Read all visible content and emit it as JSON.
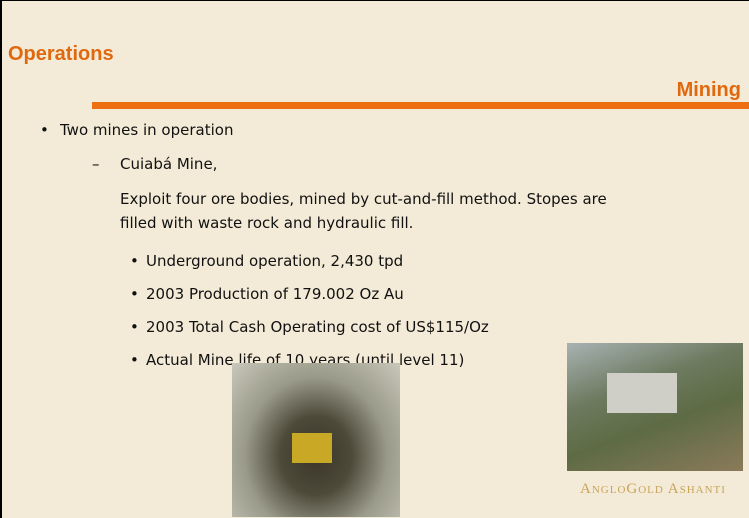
{
  "header": {
    "title": "Operations",
    "subtitle": "Mining"
  },
  "body": {
    "bullet": "Two mines in operation",
    "mine": {
      "name": "Cuiabá Mine,",
      "description": "Exploit four ore bodies, mined by cut-and-fill method. Stopes are filled with waste rock and hydraulic fill.",
      "facts": [
        "Underground operation, 2,430 tpd",
        "2003 Production of 179.002 Oz Au",
        "2003 Total Cash Operating cost of US$115/Oz",
        "Actual Mine life of 10 years (until level 11)"
      ]
    }
  },
  "footer": {
    "logo": "AngloGold Ashanti"
  }
}
